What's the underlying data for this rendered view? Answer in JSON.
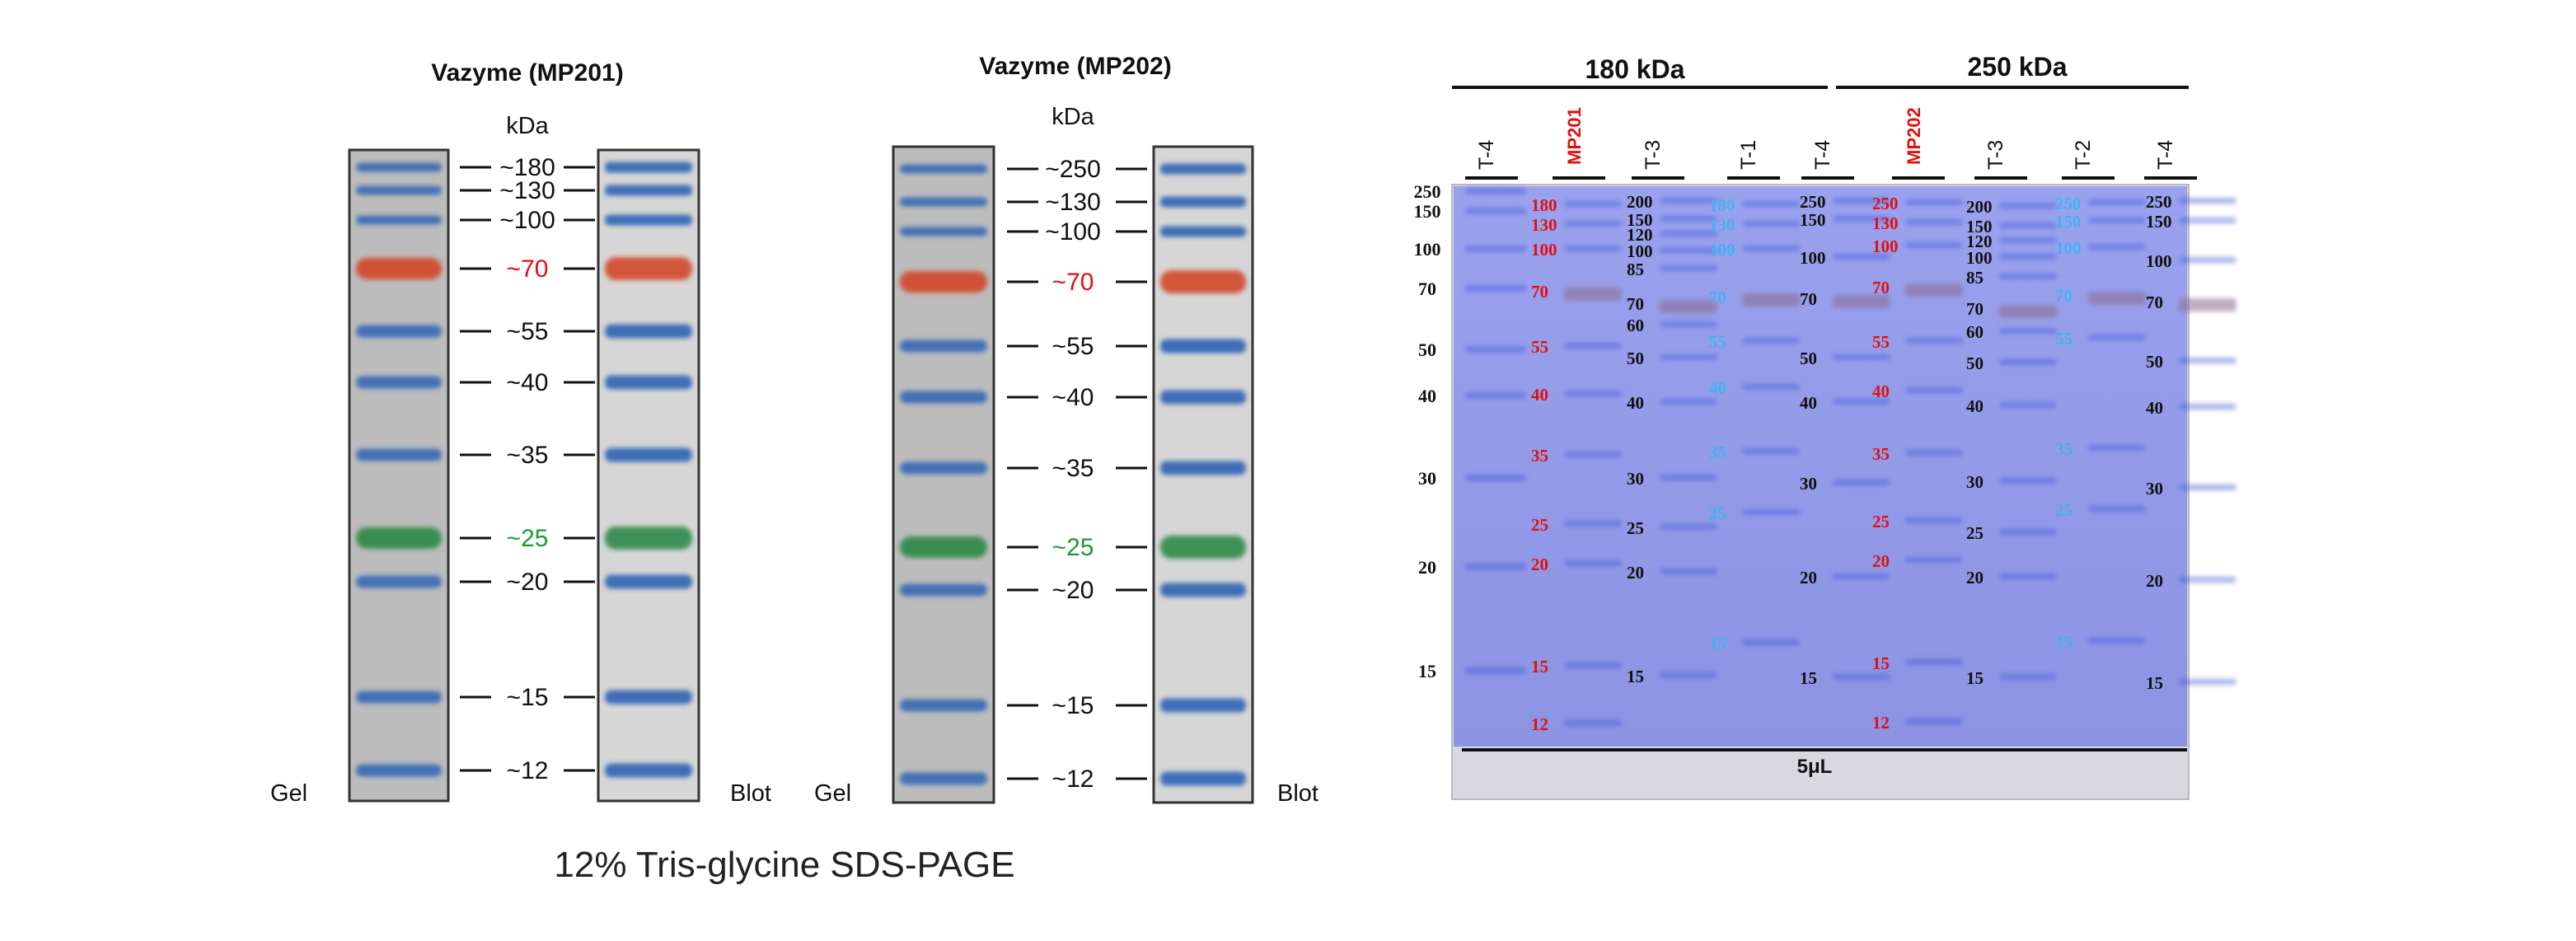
{
  "colors": {
    "gel_bg": "#bcbcbc",
    "blot_bg": "#d6d6d6",
    "blue_band": "#2d63b4",
    "red_band": "#d2482a",
    "green_band": "#2f8a48",
    "red_text": "#e01010",
    "green_text": "#1e9a34",
    "cyan_text": "#3fb4ee",
    "gel_photo_bg": "#8f97e6"
  },
  "panel1": {
    "title": "Vazyme (MP201)",
    "unit": "kDa",
    "gel_label": "Gel",
    "blot_label": "Blot",
    "markers": [
      {
        "label": "~180",
        "kda": 180,
        "color": "black"
      },
      {
        "label": "~130",
        "kda": 130,
        "color": "black"
      },
      {
        "label": "~100",
        "kda": 100,
        "color": "black"
      },
      {
        "label": "~70",
        "kda": 70,
        "color": "red"
      },
      {
        "label": "~55",
        "kda": 55,
        "color": "black"
      },
      {
        "label": "~40",
        "kda": 40,
        "color": "black"
      },
      {
        "label": "~35",
        "kda": 35,
        "color": "black"
      },
      {
        "label": "~25",
        "kda": 25,
        "color": "green"
      },
      {
        "label": "~20",
        "kda": 20,
        "color": "black"
      },
      {
        "label": "~15",
        "kda": 15,
        "color": "black"
      },
      {
        "label": "~12",
        "kda": 12,
        "color": "black"
      }
    ]
  },
  "panel2": {
    "title": "Vazyme (MP202)",
    "unit": "kDa",
    "gel_label": "Gel",
    "blot_label": "Blot",
    "markers": [
      {
        "label": "~250",
        "kda": 250,
        "color": "black"
      },
      {
        "label": "~130",
        "kda": 130,
        "color": "black"
      },
      {
        "label": "~100",
        "kda": 100,
        "color": "black"
      },
      {
        "label": "~70",
        "kda": 70,
        "color": "red"
      },
      {
        "label": "~55",
        "kda": 55,
        "color": "black"
      },
      {
        "label": "~40",
        "kda": 40,
        "color": "black"
      },
      {
        "label": "~35",
        "kda": 35,
        "color": "black"
      },
      {
        "label": "~25",
        "kda": 25,
        "color": "green"
      },
      {
        "label": "~20",
        "kda": 20,
        "color": "black"
      },
      {
        "label": "~15",
        "kda": 15,
        "color": "black"
      },
      {
        "label": "~12",
        "kda": 12,
        "color": "black"
      }
    ]
  },
  "caption": "12% Tris-glycine SDS-PAGE",
  "gel_photo": {
    "group_left": "180 kDa",
    "group_right": "250 kDa",
    "bottom_label": "5μL",
    "lanes": [
      "T-4",
      "MP201",
      "T-3",
      "T-1",
      "T-4",
      "MP202",
      "T-3",
      "T-2",
      "T-4"
    ],
    "ladder_labels": [
      "250",
      "150",
      "100",
      "70",
      "50",
      "40",
      "30",
      "20",
      "15"
    ],
    "lane_labels": [
      {
        "lane": 1,
        "color": "red",
        "values": [
          "180",
          "130",
          "100",
          "70",
          "55",
          "40",
          "35",
          "25",
          "20",
          "15",
          "12"
        ]
      },
      {
        "lane": 2,
        "color": "black",
        "values": [
          "200",
          "150",
          "120",
          "100",
          "85",
          "70",
          "60",
          "50",
          "40",
          "30",
          "25",
          "20",
          "15"
        ]
      },
      {
        "lane": 3,
        "color": "cyan",
        "values": [
          "180",
          "130",
          "100",
          "70",
          "55",
          "40",
          "35",
          "25",
          "15"
        ]
      },
      {
        "lane": 4,
        "color": "black",
        "values": [
          "250",
          "150",
          "100",
          "70",
          "50",
          "40",
          "30",
          "20",
          "15"
        ]
      },
      {
        "lane": 5,
        "color": "red",
        "values": [
          "250",
          "130",
          "100",
          "70",
          "55",
          "40",
          "35",
          "25",
          "20",
          "15",
          "12"
        ]
      },
      {
        "lane": 6,
        "color": "black",
        "values": [
          "200",
          "150",
          "120",
          "100",
          "85",
          "70",
          "60",
          "50",
          "40",
          "30",
          "25",
          "20",
          "15"
        ]
      },
      {
        "lane": 7,
        "color": "cyan",
        "values": [
          "250",
          "150",
          "100",
          "70",
          "55",
          "35",
          "25",
          "15"
        ]
      },
      {
        "lane": 8,
        "color": "black",
        "values": [
          "250",
          "150",
          "100",
          "70",
          "50",
          "40",
          "30",
          "20",
          "15"
        ]
      }
    ]
  }
}
